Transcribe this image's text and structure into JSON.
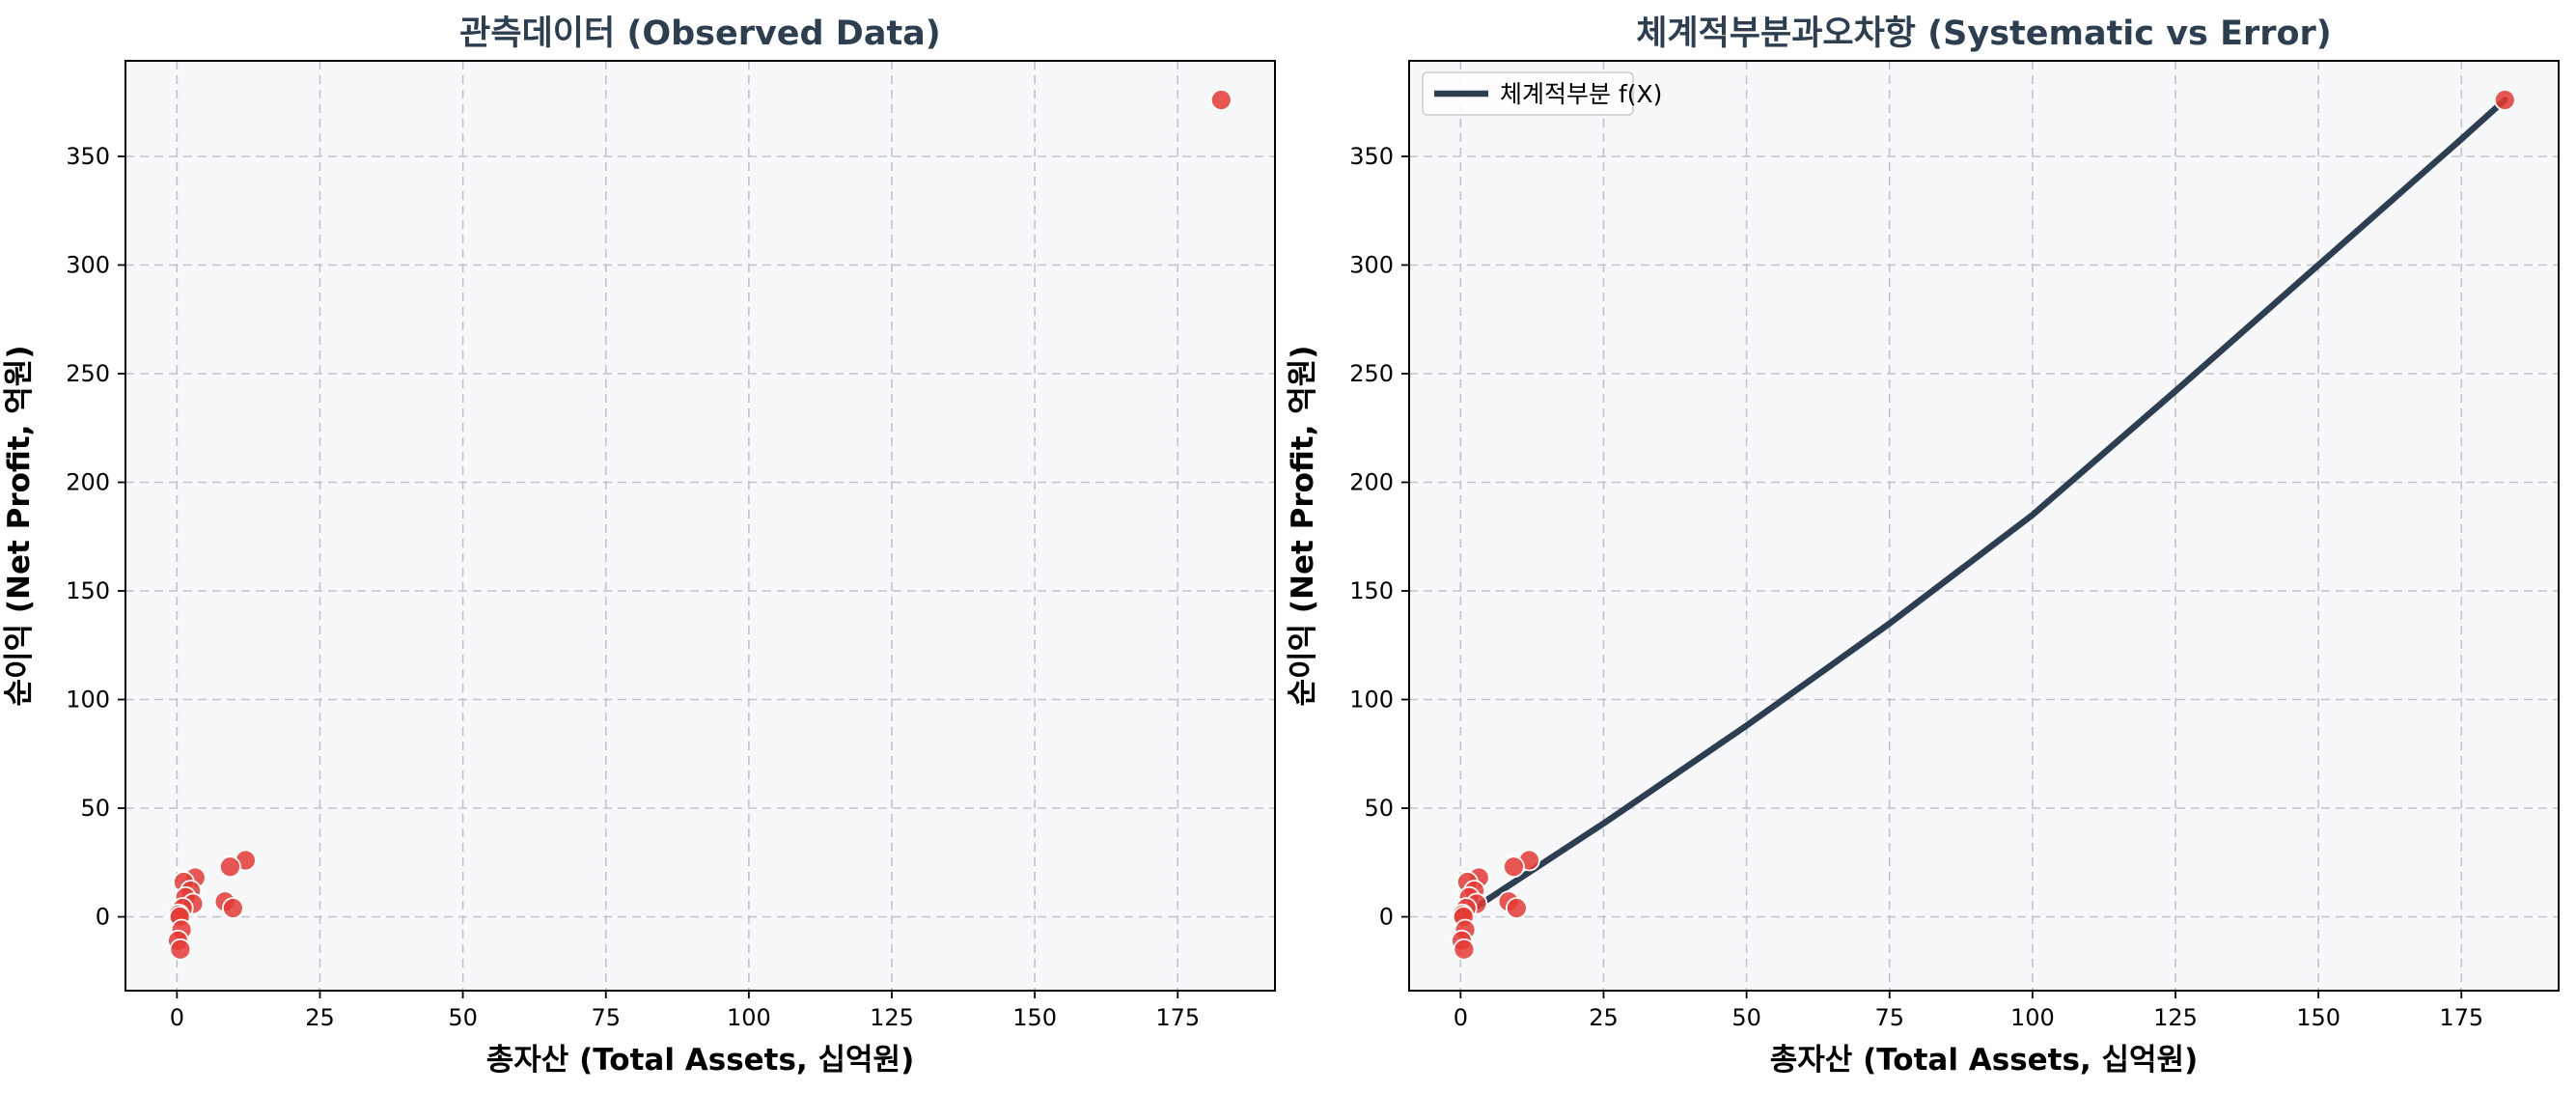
{
  "chart_data": [
    {
      "type": "scatter",
      "title": "관측데이터 (Observed Data)",
      "xlabel": "총자산 (Total Assets, 십억원)",
      "ylabel": "순이익 (Net Profit, 억원)",
      "xlim": [
        -9,
        192
      ],
      "ylim": [
        -34,
        394
      ],
      "xticks": [
        0,
        25,
        50,
        75,
        100,
        125,
        150,
        175
      ],
      "yticks": [
        0,
        50,
        100,
        150,
        200,
        250,
        300,
        350
      ],
      "grid": true,
      "point_color": "#e53935",
      "background_color": "#f7f8fa",
      "points": [
        {
          "x": 182.6,
          "y": 376
        },
        {
          "x": 12.0,
          "y": 26
        },
        {
          "x": 3.2,
          "y": 18
        },
        {
          "x": 9.3,
          "y": 23
        },
        {
          "x": 1.2,
          "y": 16
        },
        {
          "x": 2.4,
          "y": 12
        },
        {
          "x": 1.5,
          "y": 9
        },
        {
          "x": 2.8,
          "y": 6
        },
        {
          "x": 8.4,
          "y": 7
        },
        {
          "x": 9.8,
          "y": 4
        },
        {
          "x": 1.0,
          "y": 4
        },
        {
          "x": 0.3,
          "y": 1
        },
        {
          "x": 0.5,
          "y": 0
        },
        {
          "x": 0.8,
          "y": -6
        },
        {
          "x": 0.2,
          "y": -11
        },
        {
          "x": 0.6,
          "y": -15
        }
      ]
    },
    {
      "type": "line",
      "title": "체계적부분과오차항 (Systematic vs Error)",
      "xlabel": "총자산 (Total Assets, 십억원)",
      "ylabel": "순이익 (Net Profit, 억원)",
      "xlim": [
        -9,
        192
      ],
      "ylim": [
        -34,
        394
      ],
      "xticks": [
        0,
        25,
        50,
        75,
        100,
        125,
        150,
        175
      ],
      "yticks": [
        0,
        50,
        100,
        150,
        200,
        250,
        300,
        350
      ],
      "grid": true,
      "legend_position": "top-left",
      "point_color": "#e53935",
      "line_color": "#2c3e50",
      "background_color": "#f7f8fa",
      "series": [
        {
          "name": "체계적부분 f(X)",
          "x": [
            3,
            25,
            50,
            75,
            100,
            125,
            150,
            175,
            182.6
          ],
          "y": [
            5,
            43,
            88,
            135,
            185,
            242,
            300,
            358,
            376
          ]
        }
      ],
      "points": [
        {
          "x": 182.6,
          "y": 376
        },
        {
          "x": 12.0,
          "y": 26
        },
        {
          "x": 3.2,
          "y": 18
        },
        {
          "x": 9.3,
          "y": 23
        },
        {
          "x": 1.2,
          "y": 16
        },
        {
          "x": 2.4,
          "y": 12
        },
        {
          "x": 1.5,
          "y": 9
        },
        {
          "x": 2.8,
          "y": 6
        },
        {
          "x": 8.4,
          "y": 7
        },
        {
          "x": 9.8,
          "y": 4
        },
        {
          "x": 1.0,
          "y": 4
        },
        {
          "x": 0.3,
          "y": 1
        },
        {
          "x": 0.5,
          "y": 0
        },
        {
          "x": 0.8,
          "y": -6
        },
        {
          "x": 0.2,
          "y": -11
        },
        {
          "x": 0.6,
          "y": -15
        }
      ]
    }
  ]
}
